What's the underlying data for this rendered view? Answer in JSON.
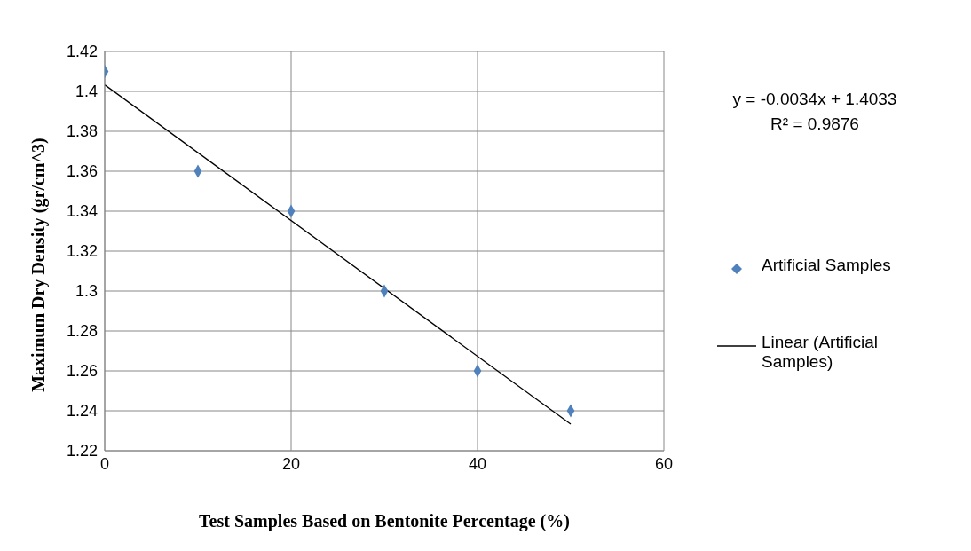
{
  "chart_data": {
    "type": "scatter",
    "xlabel": "Test Samples Based on Bentonite Percentage (%)",
    "ylabel": "Maximum Dry Density (gr/cm^3)",
    "series": [
      {
        "name": "Artificial Samples",
        "color": "#4f81bd",
        "marker": "diamond",
        "x": [
          0,
          10,
          20,
          30,
          40,
          50
        ],
        "values": [
          1.41,
          1.36,
          1.34,
          1.3,
          1.26,
          1.24
        ]
      },
      {
        "name": "Linear (Artificial Samples)",
        "type": "line",
        "color": "#000000",
        "marker": "none",
        "x": [
          0,
          50
        ],
        "values": [
          1.4033,
          1.2333
        ]
      }
    ],
    "xlim": [
      0,
      60
    ],
    "xticks": [
      0,
      20,
      40,
      60
    ],
    "ylim": [
      1.22,
      1.42
    ],
    "yticks": [
      1.22,
      1.24,
      1.26,
      1.28,
      1.3,
      1.32,
      1.34,
      1.36,
      1.38,
      1.4,
      1.42
    ],
    "grid": true,
    "legend": "right",
    "annotations": [
      "y = -0.0034x + 1.4033",
      "R² = 0.9876"
    ]
  }
}
